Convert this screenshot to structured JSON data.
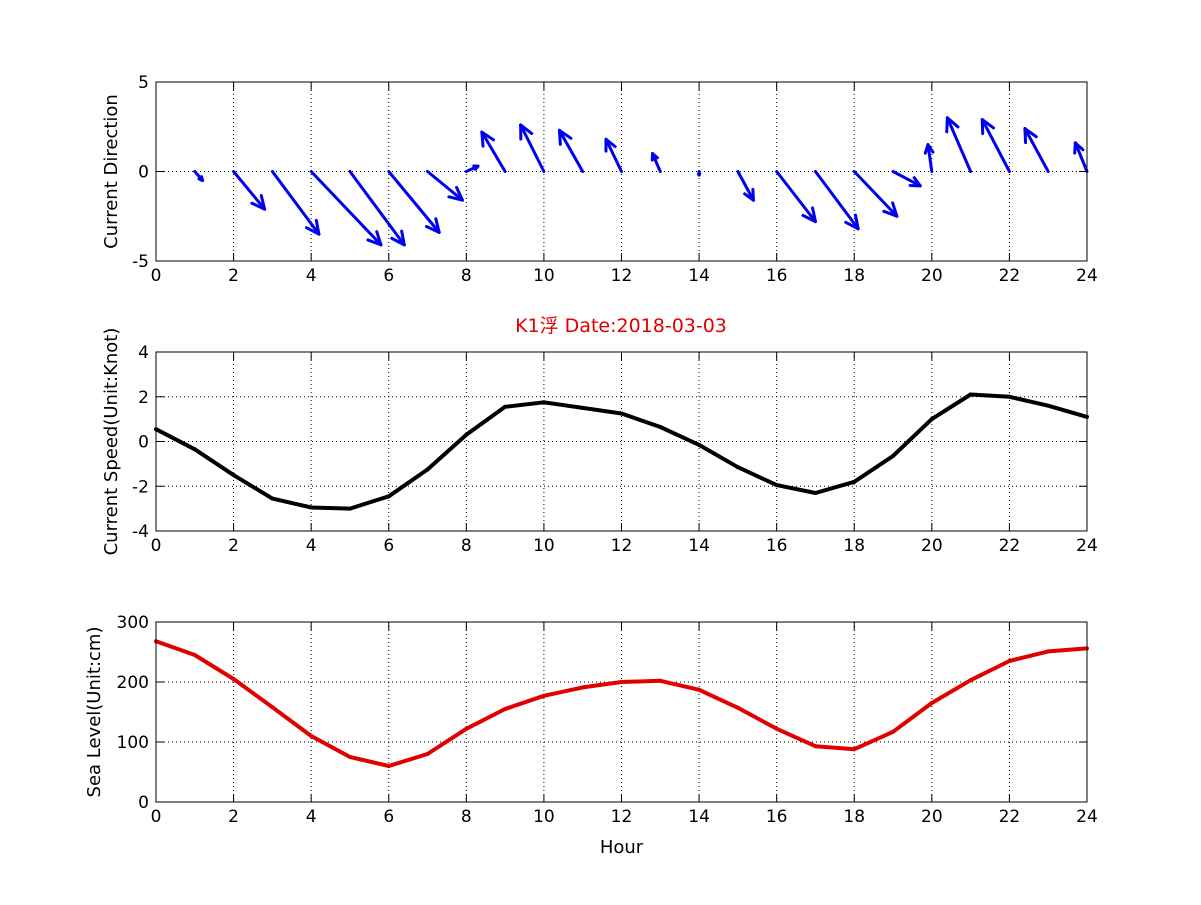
{
  "colors": {
    "direction": "#0000ee",
    "speed": "#000000",
    "sea_level": "#e00000",
    "title": "#e00000"
  },
  "chart_data": [
    {
      "type": "quiver",
      "title": "",
      "xlabel": "",
      "ylabel": "Current Direction",
      "xlim": [
        0,
        24
      ],
      "ylim": [
        -5,
        5
      ],
      "xticks": [
        0,
        2,
        4,
        6,
        8,
        10,
        12,
        14,
        16,
        18,
        20,
        22,
        24
      ],
      "yticks": [
        -5,
        0,
        5
      ],
      "grid": true,
      "x": [
        1,
        2,
        3,
        4,
        5,
        6,
        7,
        8,
        9,
        10,
        11,
        12,
        13,
        14,
        15,
        16,
        17,
        18,
        19,
        20,
        21,
        22,
        23,
        24
      ],
      "u": [
        0.2,
        0.8,
        1.2,
        1.8,
        1.4,
        1.3,
        0.9,
        0.3,
        -0.6,
        -0.6,
        -0.6,
        -0.4,
        -0.2,
        0.0,
        0.4,
        1.0,
        1.1,
        1.1,
        0.7,
        -0.1,
        -0.6,
        -0.7,
        -0.6,
        -0.3
      ],
      "v": [
        -0.5,
        -2.1,
        -3.5,
        -4.1,
        -4.1,
        -3.4,
        -1.6,
        0.3,
        2.2,
        2.6,
        2.3,
        1.8,
        1.0,
        -0.2,
        -1.6,
        -2.8,
        -3.2,
        -2.5,
        -0.8,
        1.5,
        3.0,
        2.9,
        2.4,
        1.6
      ]
    },
    {
      "type": "line",
      "title": "K1浮   Date:2018-03-03",
      "xlabel": "",
      "ylabel": "Current Speed(Unit:Knot)",
      "xlim": [
        0,
        24
      ],
      "ylim": [
        -4,
        4
      ],
      "xticks": [
        0,
        2,
        4,
        6,
        8,
        10,
        12,
        14,
        16,
        18,
        20,
        22,
        24
      ],
      "yticks": [
        -4,
        -2,
        0,
        2,
        4
      ],
      "grid": true,
      "x": [
        0,
        1,
        2,
        3,
        4,
        5,
        6,
        7,
        8,
        9,
        10,
        11,
        12,
        13,
        14,
        15,
        16,
        17,
        18,
        19,
        20,
        21,
        22,
        23,
        24
      ],
      "series": [
        {
          "values": [
            0.55,
            -0.35,
            -1.5,
            -2.55,
            -2.95,
            -3.0,
            -2.45,
            -1.25,
            0.3,
            1.55,
            1.75,
            1.5,
            1.25,
            0.65,
            -0.15,
            -1.15,
            -1.95,
            -2.3,
            -1.8,
            -0.65,
            1.0,
            2.1,
            2.0,
            1.6,
            1.1
          ]
        }
      ]
    },
    {
      "type": "line",
      "title": "",
      "xlabel": "Hour",
      "ylabel": "Sea Level(Unit:cm)",
      "xlim": [
        0,
        24
      ],
      "ylim": [
        0,
        300
      ],
      "xticks": [
        0,
        2,
        4,
        6,
        8,
        10,
        12,
        14,
        16,
        18,
        20,
        22,
        24
      ],
      "yticks": [
        0,
        100,
        200,
        300
      ],
      "grid": true,
      "x": [
        0,
        1,
        2,
        3,
        4,
        5,
        6,
        7,
        8,
        9,
        10,
        11,
        12,
        13,
        14,
        15,
        16,
        17,
        18,
        19,
        20,
        21,
        22,
        23,
        24
      ],
      "series": [
        {
          "values": [
            268,
            245,
            205,
            158,
            110,
            75,
            60,
            80,
            122,
            155,
            177,
            191,
            200,
            202,
            187,
            157,
            122,
            93,
            88,
            117,
            165,
            203,
            235,
            251,
            256
          ]
        }
      ]
    }
  ]
}
